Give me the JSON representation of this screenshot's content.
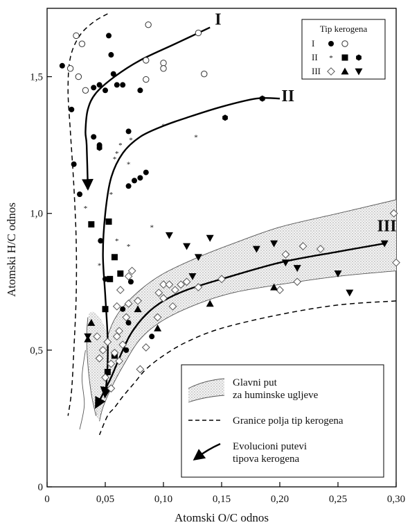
{
  "chart_data": {
    "type": "scatter",
    "title": "",
    "xlabel": "Atomski O/C odnos",
    "ylabel": "Atomski H/C odnos",
    "xlim": [
      0,
      0.3
    ],
    "ylim": [
      0,
      1.75
    ],
    "x_ticks": [
      {
        "v": 0,
        "label": "0"
      },
      {
        "v": 0.05,
        "label": "0,05"
      },
      {
        "v": 0.1,
        "label": "0,10"
      },
      {
        "v": 0.15,
        "label": "0,15"
      },
      {
        "v": 0.2,
        "label": "0,20"
      },
      {
        "v": 0.25,
        "label": "0,25"
      },
      {
        "v": 0.3,
        "label": "0,30"
      }
    ],
    "y_ticks": [
      {
        "v": 0,
        "label": "0"
      },
      {
        "v": 0.5,
        "label": "0,5"
      },
      {
        "v": 1.0,
        "label": "1,0"
      },
      {
        "v": 1.5,
        "label": "1,5"
      }
    ],
    "grid": false,
    "legend_kerogen": {
      "title": "Tip kerogena",
      "rows": [
        {
          "label": "I",
          "markers": [
            "dot",
            "circle"
          ]
        },
        {
          "label": "II",
          "markers": [
            "star",
            "square",
            "hexdot"
          ]
        },
        {
          "label": "III",
          "markers": [
            "diamond",
            "triangle",
            "invtriangle"
          ]
        }
      ]
    },
    "legend_paths": {
      "items": [
        {
          "kind": "band",
          "lines": [
            "Glavni put",
            "za huminske ugljeve"
          ]
        },
        {
          "kind": "dashed",
          "lines": [
            "Granice polja tip kerogena"
          ]
        },
        {
          "kind": "arrow",
          "lines": [
            "Evolucioni putevi",
            "tipova kerogena"
          ]
        }
      ]
    },
    "path_labels": [
      {
        "text": "I",
        "x": 0.147,
        "y": 1.69
      },
      {
        "text": "II",
        "x": 0.207,
        "y": 1.41
      },
      {
        "text": "III",
        "x": 0.292,
        "y": 0.935
      }
    ],
    "evolution_paths": [
      {
        "name": "I",
        "points": [
          [
            0.14,
            1.68
          ],
          [
            0.11,
            1.62
          ],
          [
            0.08,
            1.56
          ],
          [
            0.058,
            1.5
          ],
          [
            0.042,
            1.44
          ],
          [
            0.035,
            1.38
          ],
          [
            0.033,
            1.3
          ],
          [
            0.034,
            1.25
          ],
          [
            0.035,
            1.1
          ]
        ],
        "arrow_at": 8
      },
      {
        "name": "II",
        "points": [
          [
            0.2,
            1.42
          ],
          [
            0.18,
            1.42
          ],
          [
            0.15,
            1.39
          ],
          [
            0.12,
            1.35
          ],
          [
            0.1,
            1.32
          ],
          [
            0.08,
            1.28
          ],
          [
            0.065,
            1.22
          ],
          [
            0.055,
            1.13
          ],
          [
            0.05,
            1.0
          ],
          [
            0.048,
            0.85
          ],
          [
            0.05,
            0.7
          ],
          [
            0.052,
            0.55
          ],
          [
            0.052,
            0.45
          ],
          [
            0.051,
            0.38
          ],
          [
            0.05,
            0.34
          ]
        ],
        "arrow_at": 14
      },
      {
        "name": "III",
        "points": [
          [
            0.29,
            0.89
          ],
          [
            0.25,
            0.86
          ],
          [
            0.2,
            0.82
          ],
          [
            0.15,
            0.76
          ],
          [
            0.12,
            0.72
          ],
          [
            0.1,
            0.68
          ],
          [
            0.085,
            0.63
          ],
          [
            0.072,
            0.56
          ],
          [
            0.063,
            0.48
          ],
          [
            0.055,
            0.4
          ],
          [
            0.048,
            0.34
          ],
          [
            0.043,
            0.3
          ]
        ],
        "arrow_at": 11
      }
    ],
    "band": {
      "upper": [
        [
          0.042,
          0.26
        ],
        [
          0.046,
          0.42
        ],
        [
          0.052,
          0.55
        ],
        [
          0.062,
          0.64
        ],
        [
          0.08,
          0.72
        ],
        [
          0.1,
          0.78
        ],
        [
          0.13,
          0.84
        ],
        [
          0.16,
          0.89
        ],
        [
          0.2,
          0.95
        ],
        [
          0.25,
          1.0
        ],
        [
          0.3,
          1.05
        ]
      ],
      "lower": [
        [
          0.3,
          0.79
        ],
        [
          0.25,
          0.77
        ],
        [
          0.2,
          0.74
        ],
        [
          0.16,
          0.71
        ],
        [
          0.13,
          0.67
        ],
        [
          0.1,
          0.61
        ],
        [
          0.08,
          0.54
        ],
        [
          0.065,
          0.44
        ],
        [
          0.055,
          0.36
        ],
        [
          0.048,
          0.29
        ],
        [
          0.045,
          0.24
        ]
      ],
      "left_lobe": [
        [
          0.042,
          0.26
        ],
        [
          0.038,
          0.34
        ],
        [
          0.035,
          0.45
        ],
        [
          0.034,
          0.55
        ],
        [
          0.035,
          0.62
        ],
        [
          0.04,
          0.64
        ],
        [
          0.048,
          0.6
        ],
        [
          0.052,
          0.55
        ]
      ],
      "left_lobe_bottom": [
        [
          0.028,
          0.21
        ],
        [
          0.032,
          0.3
        ],
        [
          0.03,
          0.4
        ],
        [
          0.033,
          0.5
        ]
      ]
    },
    "boundaries": [
      {
        "name": "left",
        "points": [
          [
            0.052,
            1.73
          ],
          [
            0.04,
            1.7
          ],
          [
            0.028,
            1.65
          ],
          [
            0.02,
            1.57
          ],
          [
            0.018,
            1.45
          ],
          [
            0.02,
            1.3
          ],
          [
            0.023,
            1.1
          ],
          [
            0.025,
            0.9
          ],
          [
            0.025,
            0.7
          ],
          [
            0.023,
            0.5
          ],
          [
            0.021,
            0.35
          ],
          [
            0.018,
            0.26
          ]
        ]
      },
      {
        "name": "right",
        "points": [
          [
            0.3,
            0.68
          ],
          [
            0.25,
            0.665
          ],
          [
            0.2,
            0.63
          ],
          [
            0.15,
            0.58
          ],
          [
            0.12,
            0.53
          ],
          [
            0.1,
            0.48
          ],
          [
            0.085,
            0.43
          ],
          [
            0.075,
            0.38
          ],
          [
            0.065,
            0.33
          ],
          [
            0.058,
            0.29
          ],
          [
            0.052,
            0.26
          ],
          [
            0.045,
            0.19
          ]
        ]
      }
    ],
    "series": [
      {
        "name": "I",
        "marker": "dot",
        "points": [
          [
            0.013,
            1.54
          ],
          [
            0.021,
            1.38
          ],
          [
            0.023,
            1.18
          ],
          [
            0.028,
            1.07
          ],
          [
            0.04,
            1.46
          ],
          [
            0.045,
            1.47
          ],
          [
            0.05,
            1.45
          ],
          [
            0.053,
            1.65
          ],
          [
            0.055,
            1.58
          ],
          [
            0.057,
            1.51
          ],
          [
            0.06,
            1.47
          ],
          [
            0.065,
            1.47
          ],
          [
            0.08,
            1.45
          ],
          [
            0.085,
            1.49
          ],
          [
            0.04,
            1.28
          ],
          [
            0.045,
            1.25
          ],
          [
            0.07,
            1.3
          ],
          [
            0.07,
            1.1
          ],
          [
            0.075,
            1.12
          ],
          [
            0.08,
            1.13
          ],
          [
            0.085,
            1.15
          ],
          [
            0.072,
            0.75
          ],
          [
            0.065,
            0.65
          ],
          [
            0.068,
            0.5
          ],
          [
            0.07,
            0.6
          ],
          [
            0.09,
            0.55
          ],
          [
            0.05,
            0.76
          ],
          [
            0.046,
            0.9
          ]
        ]
      },
      {
        "name": "I",
        "marker": "circle",
        "points": [
          [
            0.025,
            1.65
          ],
          [
            0.03,
            1.62
          ],
          [
            0.02,
            1.53
          ],
          [
            0.027,
            1.5
          ],
          [
            0.033,
            1.45
          ],
          [
            0.087,
            1.69
          ],
          [
            0.1,
            1.55
          ],
          [
            0.1,
            1.53
          ],
          [
            0.085,
            1.56
          ],
          [
            0.085,
            1.49
          ],
          [
            0.13,
            1.66
          ],
          [
            0.135,
            1.51
          ]
        ]
      },
      {
        "name": "II",
        "marker": "star",
        "points": [
          [
            0.035,
            1.09
          ],
          [
            0.033,
            1.02
          ],
          [
            0.045,
            0.81
          ],
          [
            0.06,
            1.22
          ],
          [
            0.063,
            1.25
          ],
          [
            0.07,
            1.18
          ],
          [
            0.072,
            1.27
          ],
          [
            0.1,
            1.32
          ],
          [
            0.128,
            1.28
          ],
          [
            0.055,
            1.07
          ],
          [
            0.058,
            1.2
          ],
          [
            0.06,
            0.9
          ],
          [
            0.09,
            0.95
          ],
          [
            0.07,
            0.88
          ]
        ]
      },
      {
        "name": "II",
        "marker": "square",
        "points": [
          [
            0.038,
            0.96
          ],
          [
            0.053,
            0.97
          ],
          [
            0.058,
            0.84
          ],
          [
            0.054,
            0.76
          ],
          [
            0.063,
            0.78
          ],
          [
            0.05,
            0.65
          ],
          [
            0.058,
            0.48
          ],
          [
            0.052,
            0.42
          ]
        ]
      },
      {
        "name": "II",
        "marker": "hexdot",
        "points": [
          [
            0.045,
            1.24
          ],
          [
            0.153,
            1.35
          ],
          [
            0.185,
            1.42
          ]
        ]
      },
      {
        "name": "III",
        "marker": "diamond",
        "points": [
          [
            0.043,
            0.55
          ],
          [
            0.045,
            0.47
          ],
          [
            0.048,
            0.5
          ],
          [
            0.052,
            0.53
          ],
          [
            0.055,
            0.45
          ],
          [
            0.058,
            0.49
          ],
          [
            0.06,
            0.55
          ],
          [
            0.062,
            0.57
          ],
          [
            0.065,
            0.52
          ],
          [
            0.068,
            0.62
          ],
          [
            0.07,
            0.67
          ],
          [
            0.06,
            0.66
          ],
          [
            0.063,
            0.72
          ],
          [
            0.07,
            0.77
          ],
          [
            0.073,
            0.79
          ],
          [
            0.078,
            0.68
          ],
          [
            0.085,
            0.51
          ],
          [
            0.095,
            0.62
          ],
          [
            0.096,
            0.71
          ],
          [
            0.1,
            0.69
          ],
          [
            0.1,
            0.74
          ],
          [
            0.105,
            0.74
          ],
          [
            0.108,
            0.66
          ],
          [
            0.11,
            0.72
          ],
          [
            0.115,
            0.74
          ],
          [
            0.12,
            0.75
          ],
          [
            0.13,
            0.73
          ],
          [
            0.15,
            0.76
          ],
          [
            0.2,
            0.72
          ],
          [
            0.205,
            0.85
          ],
          [
            0.215,
            0.75
          ],
          [
            0.22,
            0.88
          ],
          [
            0.235,
            0.87
          ],
          [
            0.298,
            1.0
          ],
          [
            0.3,
            0.82
          ],
          [
            0.05,
            0.4
          ],
          [
            0.055,
            0.36
          ],
          [
            0.062,
            0.46
          ],
          [
            0.08,
            0.43
          ]
        ]
      },
      {
        "name": "III",
        "marker": "triangle",
        "points": [
          [
            0.035,
            0.54
          ],
          [
            0.038,
            0.6
          ],
          [
            0.078,
            0.65
          ],
          [
            0.095,
            0.58
          ],
          [
            0.14,
            0.67
          ],
          [
            0.195,
            0.73
          ]
        ]
      },
      {
        "name": "III",
        "marker": "invtriangle",
        "points": [
          [
            0.105,
            0.92
          ],
          [
            0.12,
            0.88
          ],
          [
            0.125,
            0.77
          ],
          [
            0.13,
            0.84
          ],
          [
            0.14,
            0.91
          ],
          [
            0.18,
            0.87
          ],
          [
            0.195,
            0.89
          ],
          [
            0.205,
            0.82
          ],
          [
            0.215,
            0.8
          ],
          [
            0.25,
            0.78
          ],
          [
            0.26,
            0.71
          ],
          [
            0.29,
            0.89
          ],
          [
            0.035,
            0.55
          ]
        ]
      }
    ]
  }
}
